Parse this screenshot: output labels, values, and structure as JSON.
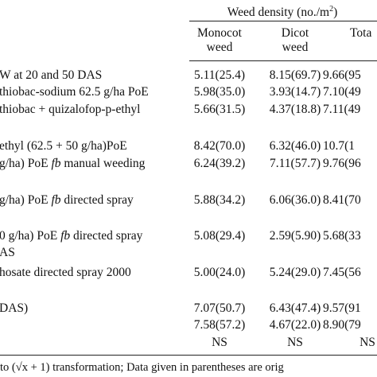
{
  "header": {
    "group": "Weed density (no./m",
    "group_sup": "2",
    "group_end": ")",
    "columns": [
      [
        "Monocot",
        "weed"
      ],
      [
        "Dicot",
        "weed"
      ],
      [
        "Tota"
      ]
    ]
  },
  "rows": [
    {
      "treatment": [
        "W at 20 and 50 DAS"
      ],
      "cells": [
        "5.11(25.4)",
        "8.15(69.7)",
        "9.66(95"
      ]
    },
    {
      "treatment": [
        "thiobac-sodium 62.5 g/ha PoE"
      ],
      "cells": [
        "5.98(35.0)",
        "3.93(14.7)",
        "7.10(49"
      ]
    },
    {
      "treatment": [
        "thiobac + quizalofop-p-ethyl"
      ],
      "cells": [
        "5.66(31.5)",
        "4.37(18.8)",
        "7.11(49"
      ]
    },
    {
      "treatment": [
        "ethyl (62.5 + 50 g/ha)PoE"
      ],
      "cells": [
        "8.42(70.0)",
        "6.32(46.0)",
        "10.7(1"
      ]
    },
    {
      "treatment": [
        "g/ha) PoE ",
        "fb",
        " manual weeding"
      ],
      "cells": [
        "6.24(39.2)",
        "7.11(57.7)",
        "9.76(96"
      ]
    },
    {
      "treatment": [
        "g/ha) PoE ",
        "fb",
        " directed spray"
      ],
      "cells": [
        "5.88(34.2)",
        "6.06(36.0)",
        "8.41(70"
      ]
    },
    {
      "treatment": [
        "0 g/ha) PoE ",
        "fb",
        " directed spray"
      ],
      "cells": [
        "5.08(29.4)",
        "2.59(5.90)",
        "5.68(33"
      ]
    },
    {
      "treatment": [
        "AS"
      ],
      "cells": []
    },
    {
      "treatment": [
        "hosate directed spray 2000"
      ],
      "cells": [
        "5.00(24.0)",
        "5.24(29.0)",
        "7.45(56"
      ]
    },
    {
      "treatment": [
        "DAS)"
      ],
      "cells": [
        "7.07(50.7)",
        "6.43(47.4)",
        "9.57(91"
      ]
    },
    {
      "treatment": [],
      "cells": [
        "7.58(57.2)",
        "4.67(22.0)",
        "8.90(79"
      ]
    },
    {
      "treatment": [],
      "cells": [
        "NS",
        "NS",
        "NS"
      ]
    }
  ],
  "footnote": "to (√x + 1) transformation; Data given in parentheses are orig"
}
